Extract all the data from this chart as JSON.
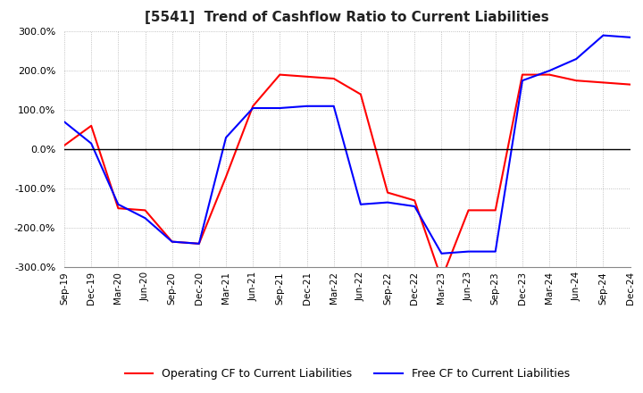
{
  "title": "[5541]  Trend of Cashflow Ratio to Current Liabilities",
  "x_labels": [
    "Sep-19",
    "Dec-19",
    "Mar-20",
    "Jun-20",
    "Sep-20",
    "Dec-20",
    "Mar-21",
    "Jun-21",
    "Sep-21",
    "Dec-21",
    "Mar-22",
    "Jun-22",
    "Sep-22",
    "Dec-22",
    "Mar-23",
    "Jun-23",
    "Sep-23",
    "Dec-23",
    "Mar-24",
    "Jun-24",
    "Sep-24",
    "Dec-24"
  ],
  "operating_cf": [
    10,
    60,
    -150,
    -155,
    -235,
    -240,
    -70,
    110,
    190,
    185,
    180,
    140,
    -110,
    -130,
    -330,
    -155,
    -155,
    190,
    190,
    175,
    170,
    165
  ],
  "free_cf": [
    70,
    15,
    -140,
    -175,
    -235,
    -240,
    30,
    105,
    105,
    110,
    110,
    -140,
    -135,
    -145,
    -265,
    -260,
    -260,
    175,
    200,
    230,
    290,
    285
  ],
  "operating_color": "#ff0000",
  "free_color": "#0000ff",
  "ylim": [
    -300,
    300
  ],
  "yticks": [
    -300,
    -200,
    -100,
    0,
    100,
    200,
    300
  ],
  "background_color": "#ffffff",
  "grid_color": "#b0b0b0"
}
